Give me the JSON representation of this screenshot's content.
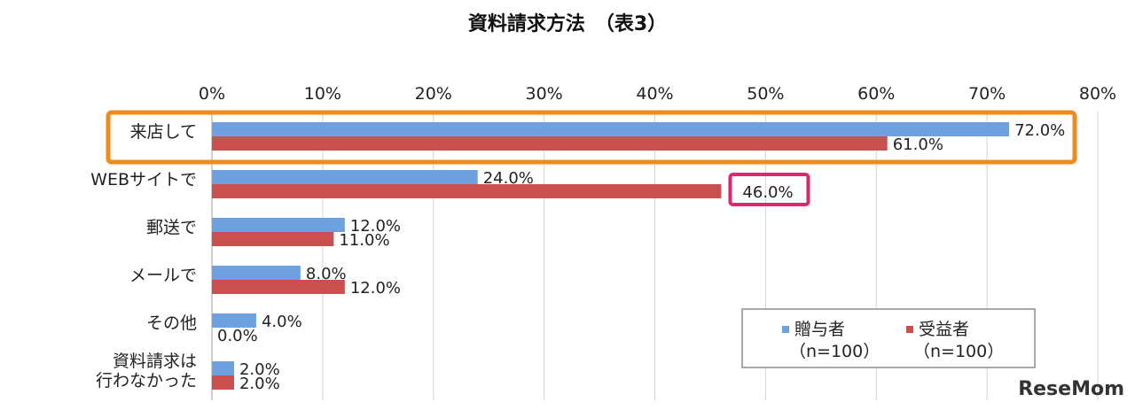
{
  "chart_data": {
    "type": "bar",
    "orientation": "horizontal",
    "title": "資料請求方法　（表3）",
    "xlim": [
      0,
      80
    ],
    "ticks": [
      0,
      10,
      20,
      30,
      40,
      50,
      60,
      70,
      80
    ],
    "tick_labels": [
      "0%",
      "10%",
      "20%",
      "30%",
      "40%",
      "50%",
      "60%",
      "70%",
      "80%"
    ],
    "grid": true,
    "categories": [
      [
        "来店して"
      ],
      [
        "WEBサイトで"
      ],
      [
        "郵送で"
      ],
      [
        "メールで"
      ],
      [
        "その他"
      ],
      [
        "資料請求は",
        "行わなかった"
      ]
    ],
    "series": [
      {
        "name": "贈与者",
        "count_label": "（n=100）",
        "color": "#6fa1de",
        "values": [
          72.0,
          24.0,
          12.0,
          8.0,
          4.0,
          2.0
        ],
        "labels": [
          "72.0%",
          "24.0%",
          "12.0%",
          "8.0%",
          "4.0%",
          "2.0%"
        ]
      },
      {
        "name": "受益者",
        "count_label": "（n=100）",
        "color": "#c9504f",
        "values": [
          61.0,
          46.0,
          11.0,
          12.0,
          0.0,
          2.0
        ],
        "labels": [
          "61.0%",
          "46.0%",
          "11.0%",
          "12.0%",
          "0.0%",
          "2.0%"
        ]
      }
    ],
    "legend_position": "bottom-right",
    "highlights": [
      {
        "category_index": 0,
        "color": "#ee8b1c"
      },
      {
        "category_index": 1,
        "series_index": 1,
        "color": "#e0266e"
      }
    ]
  },
  "watermark": "ReseMom"
}
